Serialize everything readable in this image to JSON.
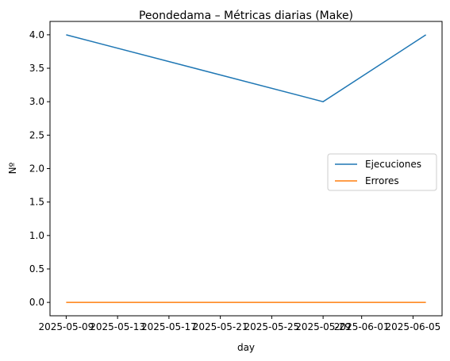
{
  "chart_data": {
    "type": "line",
    "title": "Peondedama – Métricas diarias (Make)",
    "xlabel": "day",
    "ylabel": "Nº",
    "x_ticks": [
      "2025-05-09",
      "2025-05-13",
      "2025-05-17",
      "2025-05-21",
      "2025-05-25",
      "2025-05-29",
      "2025-06-01",
      "2025-06-05"
    ],
    "y_ticks": [
      "0.0",
      "0.5",
      "1.0",
      "1.5",
      "2.0",
      "2.5",
      "3.0",
      "3.5",
      "4.0"
    ],
    "x": [
      "2025-05-09",
      "2025-05-29",
      "2025-06-06"
    ],
    "ylim": [
      -0.2,
      4.2
    ],
    "series": [
      {
        "name": "Ejecuciones",
        "values": [
          4,
          3,
          4
        ],
        "color": "#1f77b4"
      },
      {
        "name": "Errores",
        "values": [
          0,
          0,
          0
        ],
        "color": "#ff7f0e"
      }
    ],
    "legend_position": "center-right",
    "grid": false
  }
}
